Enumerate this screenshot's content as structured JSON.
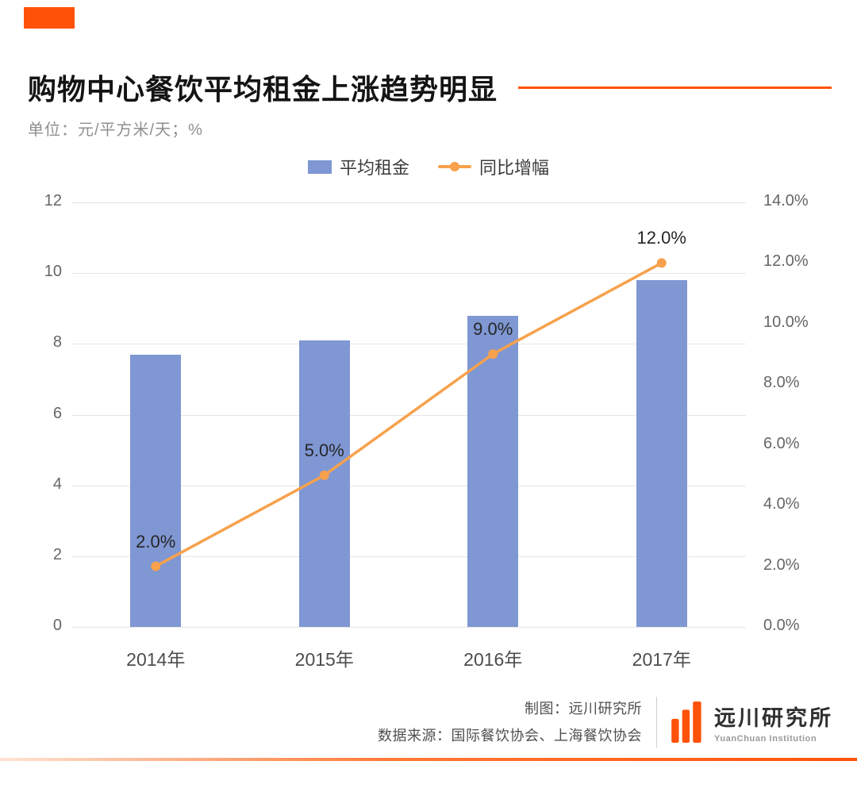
{
  "accent_color": "#ff5208",
  "header": {
    "title": "购物中心餐饮平均租金上涨趋势明显",
    "subtitle": "单位：元/平方米/天；%"
  },
  "legend": {
    "bar_label": "平均租金",
    "line_label": "同比增幅"
  },
  "chart_data": {
    "type": "bar+line",
    "categories": [
      "2014年",
      "2015年",
      "2016年",
      "2017年"
    ],
    "series": [
      {
        "name": "平均租金",
        "type": "bar",
        "axis": "left",
        "color": "#7f97d3",
        "values": [
          7.7,
          8.1,
          8.8,
          9.8
        ]
      },
      {
        "name": "同比增幅",
        "type": "line",
        "axis": "right",
        "color": "#f7a14c",
        "values": [
          2.0,
          5.0,
          9.0,
          12.0
        ],
        "labels": [
          "2.0%",
          "5.0%",
          "9.0%",
          "12.0%"
        ]
      }
    ],
    "left_axis": {
      "min": 0,
      "max": 12,
      "step": 2,
      "ticks": [
        "0",
        "2",
        "4",
        "6",
        "8",
        "10",
        "12"
      ]
    },
    "right_axis": {
      "min": 0,
      "max": 14,
      "step": 2,
      "ticks": [
        "0.0%",
        "2.0%",
        "4.0%",
        "6.0%",
        "8.0%",
        "10.0%",
        "12.0%",
        "14.0%"
      ]
    },
    "grid": true,
    "legend_position": "top"
  },
  "footer": {
    "credit": "制图：远川研究所",
    "source": "数据来源：国际餐饮协会、上海餐饮协会",
    "logo_text": "远川研究所",
    "logo_subtext": "YuanChuan Institution"
  }
}
